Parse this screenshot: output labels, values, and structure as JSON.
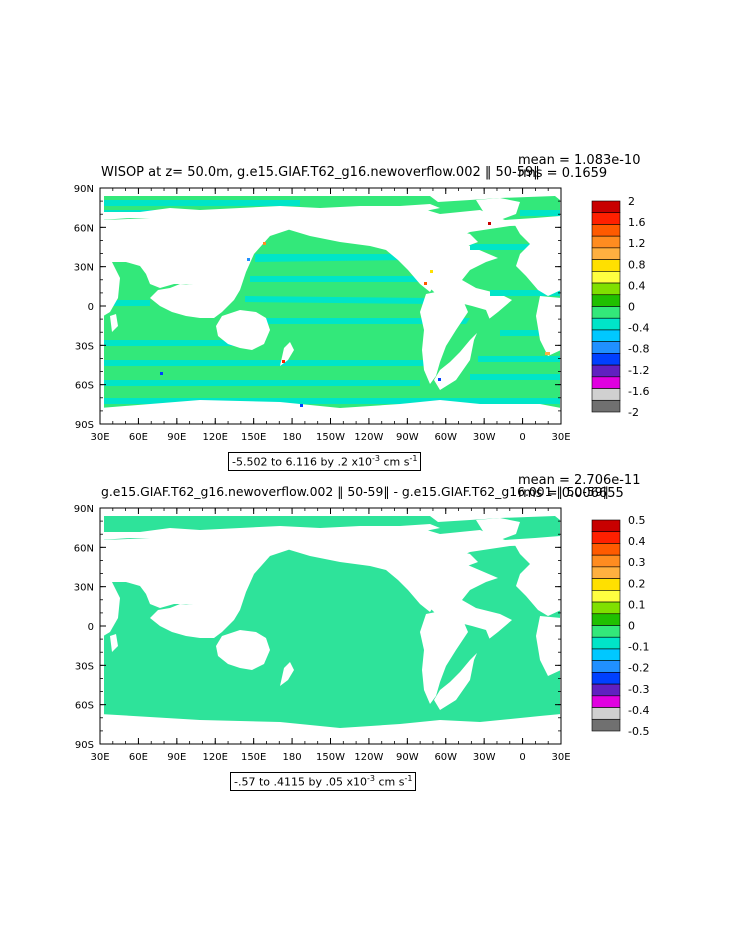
{
  "colors": {
    "ocean_neg_small": "#00e5c8",
    "ocean_zero": "#33e87a",
    "land": "#ffffff"
  },
  "panel1": {
    "title": "WISOP at z=  50.0m, g.e15.GIAF.T62_g16.newoverflow.002 ‖ 50-59‖",
    "mean": "mean = 1.083e-10",
    "rms": "rms = 0.1659",
    "range_text": "-5.502 to 6.116 by .2 x10",
    "range_exp": "-3",
    "range_units": " cm s",
    "range_units_exp": "-1",
    "lat_labels": [
      "90N",
      "60N",
      "30N",
      "0",
      "30S",
      "60S",
      "90S"
    ],
    "lon_labels": [
      "30E",
      "60E",
      "90E",
      "120E",
      "150E",
      "180",
      "150W",
      "120W",
      "90W",
      "60W",
      "30W",
      "0",
      "30E"
    ],
    "colorbar": {
      "labels": [
        "2",
        "1.6",
        "1.2",
        "0.8",
        "0.4",
        "0",
        "-0.4",
        "-0.8",
        "-1.2",
        "-1.6",
        "-2"
      ],
      "colors": [
        "#c80000",
        "#ff2000",
        "#ff5a00",
        "#ff8c20",
        "#ffb040",
        "#ffe000",
        "#ffff40",
        "#80e000",
        "#20c000",
        "#33e87a",
        "#00e5c8",
        "#00c8ff",
        "#2090ff",
        "#0040ff",
        "#6020c0",
        "#e000e0",
        "#d0d0d0",
        "#707070"
      ]
    }
  },
  "panel2": {
    "title": "g.e15.GIAF.T62_g16.newoverflow.002 ‖ 50-59‖ - g.e15.GIAF.T62_g16.001 ‖ 50-59‖",
    "mean": "mean = 2.706e-11",
    "rms": "rms = 0.006655",
    "range_text": "-.57 to .4115 by .05 x10",
    "range_exp": "-3",
    "range_units": " cm s",
    "range_units_exp": "-1",
    "lat_labels": [
      "90N",
      "60N",
      "30N",
      "0",
      "30S",
      "60S",
      "90S"
    ],
    "lon_labels": [
      "30E",
      "60E",
      "90E",
      "120E",
      "150E",
      "180",
      "150W",
      "120W",
      "90W",
      "60W",
      "30W",
      "0",
      "30E"
    ],
    "colorbar": {
      "labels": [
        "0.5",
        "0.4",
        "0.3",
        "0.2",
        "0.1",
        "0",
        "-0.1",
        "-0.2",
        "-0.3",
        "-0.4",
        "-0.5"
      ],
      "colors": [
        "#c80000",
        "#ff2000",
        "#ff5a00",
        "#ff8c20",
        "#ffb040",
        "#ffe000",
        "#ffff40",
        "#80e000",
        "#20c000",
        "#33e87a",
        "#00e5c8",
        "#00c8ff",
        "#2090ff",
        "#0040ff",
        "#6020c0",
        "#e000e0",
        "#d0d0d0",
        "#707070"
      ]
    }
  }
}
